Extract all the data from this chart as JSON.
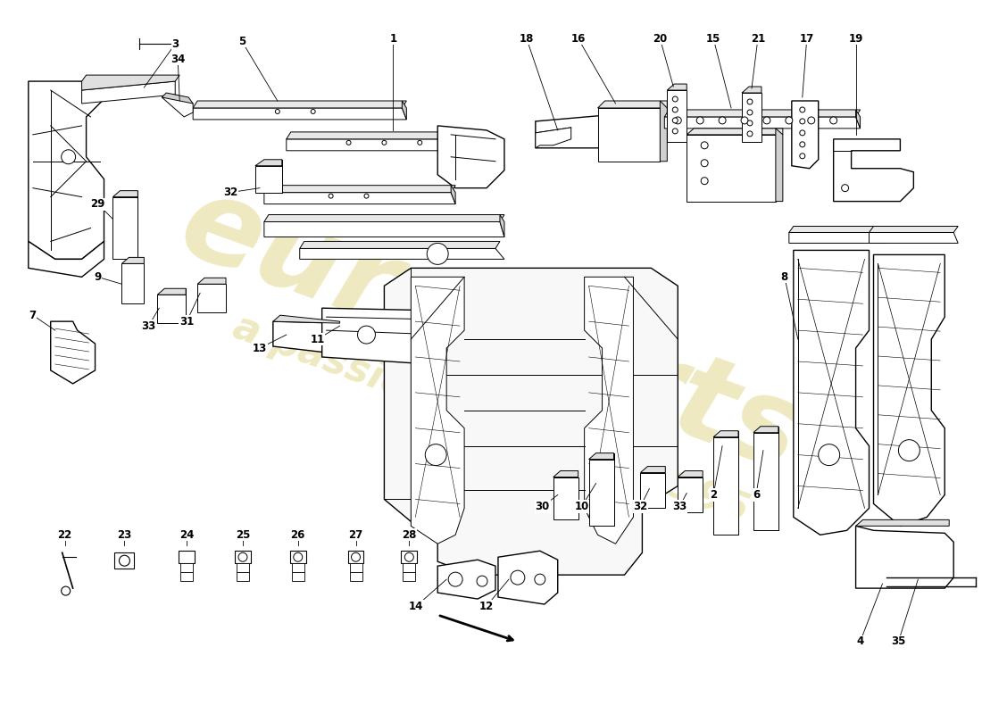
{
  "background_color": "#ffffff",
  "line_color": "#000000",
  "watermark_color": "#c8b830",
  "watermark_alpha": 0.3,
  "lw_main": 1.0,
  "lw_thin": 0.7
}
